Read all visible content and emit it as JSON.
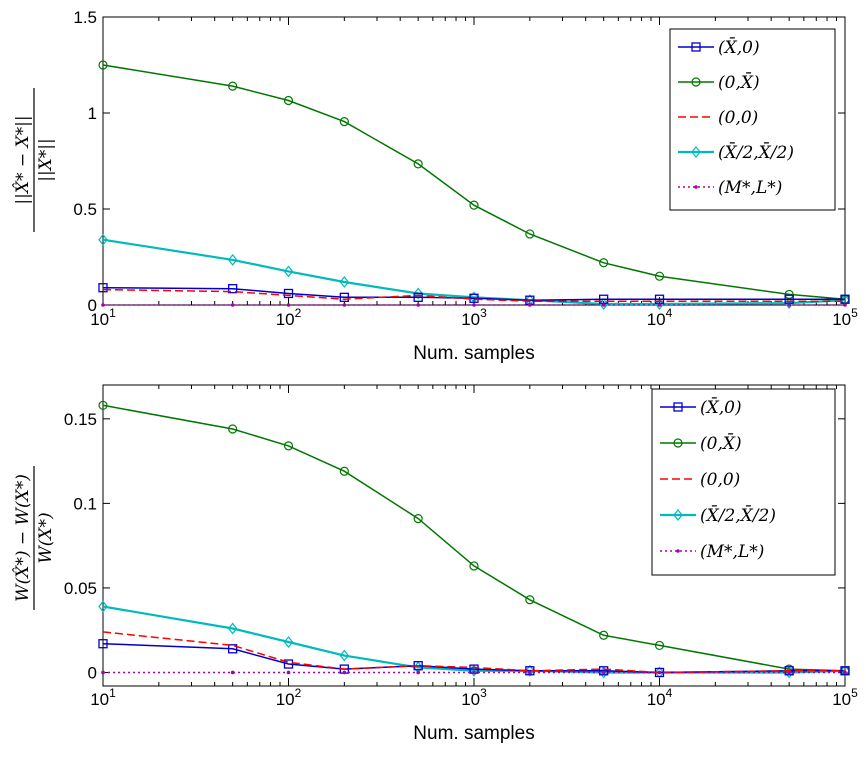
{
  "chart_data": [
    {
      "type": "line",
      "xscale": "log",
      "xlim": [
        10,
        100000
      ],
      "ylim": [
        0,
        1.5
      ],
      "xlabel": "Num. samples",
      "ylabel": {
        "num": "||X̂* − X*||",
        "den": "||X*||"
      },
      "yticks": [
        "0",
        "0.5",
        "1",
        "1.5"
      ],
      "ytick_values": [
        0,
        0.5,
        1,
        1.5
      ],
      "xticks": [
        {
          "base": "10",
          "exp": "1"
        },
        {
          "base": "10",
          "exp": "2"
        },
        {
          "base": "10",
          "exp": "3"
        },
        {
          "base": "10",
          "exp": "4"
        },
        {
          "base": "10",
          "exp": "5"
        }
      ],
      "xtick_values": [
        10,
        100,
        1000,
        10000,
        100000
      ],
      "legend_position": "top-right",
      "x": [
        10,
        50,
        100,
        200,
        500,
        1000,
        2000,
        5000,
        10000,
        50000,
        100000
      ],
      "series": [
        {
          "name": "(X̄,0)",
          "color": "#0000cc",
          "dash": "solid",
          "marker": "square",
          "values": [
            0.09,
            0.085,
            0.06,
            0.04,
            0.04,
            0.035,
            0.025,
            0.03,
            0.03,
            0.03,
            0.03
          ]
        },
        {
          "name": "(0,X̄)",
          "color": "#007700",
          "dash": "solid",
          "marker": "circle",
          "values": [
            1.25,
            1.14,
            1.065,
            0.955,
            0.735,
            0.52,
            0.37,
            0.22,
            0.15,
            0.055,
            0.03
          ]
        },
        {
          "name": "(0,0)",
          "color": "#ff0000",
          "dash": "dashed",
          "marker": "none",
          "values": [
            0.08,
            0.07,
            0.05,
            0.03,
            0.05,
            0.03,
            0.02,
            0.02,
            0.02,
            0.02,
            0.02
          ]
        },
        {
          "name": "(X̄/2,X̄/2)",
          "color": "#00bbbb",
          "dash": "solid",
          "marker": "diamond",
          "values": [
            0.34,
            0.235,
            0.175,
            0.12,
            0.06,
            0.04,
            0.025,
            0.005,
            0.005,
            0.01,
            0.025
          ]
        },
        {
          "name": "(M*,L*)",
          "color": "#aa00aa",
          "dash": "dotted",
          "marker": "dot",
          "values": [
            0,
            0,
            0,
            0,
            0,
            0,
            0,
            0,
            0,
            0,
            0
          ]
        }
      ]
    },
    {
      "type": "line",
      "xscale": "log",
      "xlim": [
        10,
        100000
      ],
      "ylim": [
        -0.008,
        0.17
      ],
      "xlabel": "Num. samples",
      "ylabel": {
        "num": "W(X̂*) − W(X*)",
        "den": "W(X*)"
      },
      "yticks": [
        "0",
        "0.05",
        "0.1",
        "0.15"
      ],
      "ytick_values": [
        0,
        0.05,
        0.1,
        0.15
      ],
      "xticks": [
        {
          "base": "10",
          "exp": "1"
        },
        {
          "base": "10",
          "exp": "2"
        },
        {
          "base": "10",
          "exp": "3"
        },
        {
          "base": "10",
          "exp": "4"
        },
        {
          "base": "10",
          "exp": "5"
        }
      ],
      "xtick_values": [
        10,
        100,
        1000,
        10000,
        100000
      ],
      "legend_position": "top-right",
      "x": [
        10,
        50,
        100,
        200,
        500,
        1000,
        2000,
        5000,
        10000,
        50000,
        100000
      ],
      "series": [
        {
          "name": "(X̄,0)",
          "color": "#0000cc",
          "dash": "solid",
          "marker": "square",
          "values": [
            0.017,
            0.014,
            0.005,
            0.002,
            0.004,
            0.002,
            0.001,
            0.001,
            0.0,
            0.001,
            0.001
          ]
        },
        {
          "name": "(0,X̄)",
          "color": "#007700",
          "dash": "solid",
          "marker": "circle",
          "values": [
            0.158,
            0.144,
            0.134,
            0.119,
            0.091,
            0.063,
            0.043,
            0.022,
            0.016,
            0.002,
            0.001
          ]
        },
        {
          "name": "(0,0)",
          "color": "#ff0000",
          "dash": "dashed",
          "marker": "none",
          "values": [
            0.024,
            0.016,
            0.006,
            0.002,
            0.004,
            0.003,
            0.001,
            0.002,
            0.0,
            0.001,
            0.001
          ]
        },
        {
          "name": "(X̄/2,X̄/2)",
          "color": "#00bbbb",
          "dash": "solid",
          "marker": "diamond",
          "values": [
            0.039,
            0.026,
            0.018,
            0.01,
            0.003,
            0.001,
            0.001,
            0.0,
            0.0,
            0.0,
            0.001
          ]
        },
        {
          "name": "(M*,L*)",
          "color": "#aa00aa",
          "dash": "dotted",
          "marker": "dot",
          "values": [
            0,
            0,
            0,
            0,
            0,
            0,
            0,
            0,
            0,
            0,
            0
          ]
        }
      ]
    }
  ]
}
